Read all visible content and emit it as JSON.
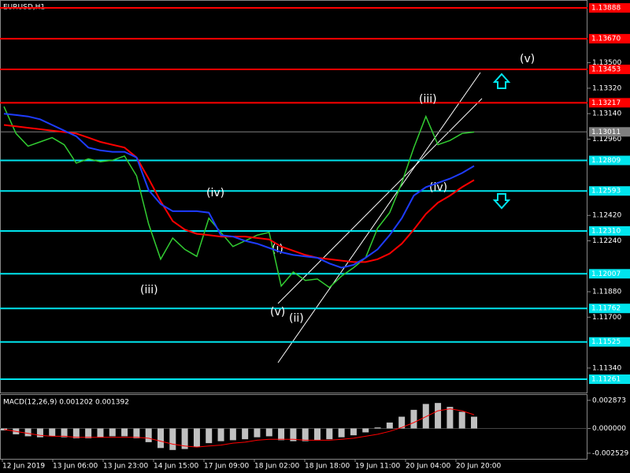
{
  "chart_data": [
    {
      "type": "line",
      "title": "EURUSD,H1",
      "ylim": [
        1.11172,
        1.13944
      ],
      "yticks": [
        {
          "value": 1.135,
          "label": "1.13500"
        },
        {
          "value": 1.1332,
          "label": "1.13320"
        },
        {
          "value": 1.1314,
          "label": "1.13140"
        },
        {
          "value": 1.1296,
          "label": "1.12960"
        },
        {
          "value": 1.1242,
          "label": "1.12420"
        },
        {
          "value": 1.1224,
          "label": "1.12240"
        },
        {
          "value": 1.1188,
          "label": "1.11880"
        },
        {
          "value": 1.117,
          "label": "1.11700"
        },
        {
          "value": 1.1134,
          "label": "1.11340"
        }
      ],
      "levels": [
        {
          "value": 1.13888,
          "label": "1.13888",
          "color": "#ff0000"
        },
        {
          "value": 1.1367,
          "label": "1.13670",
          "color": "#ff0000"
        },
        {
          "value": 1.13453,
          "label": "1.13453",
          "color": "#ff0000"
        },
        {
          "value": 1.13217,
          "label": "1.13217",
          "color": "#ff0000"
        },
        {
          "value": 1.13011,
          "label": "1.13011",
          "color": "#808080"
        },
        {
          "value": 1.12809,
          "label": "1.12809",
          "color": "#00e5ee"
        },
        {
          "value": 1.12593,
          "label": "1.12593",
          "color": "#00e5ee"
        },
        {
          "value": 1.1231,
          "label": "1.12310",
          "color": "#00e5ee"
        },
        {
          "value": 1.12007,
          "label": "1.12007",
          "color": "#00e5ee"
        },
        {
          "value": 1.11762,
          "label": "1.11762",
          "color": "#00e5ee"
        },
        {
          "value": 1.11525,
          "label": "1.11525",
          "color": "#00e5ee"
        },
        {
          "value": 1.11261,
          "label": "1.11261",
          "color": "#00e5ee"
        }
      ],
      "xtick_labels": [
        "12 Jun 2019",
        "13 Jun 06:00",
        "13 Jun 23:00",
        "14 Jun 15:00",
        "17 Jun 09:00",
        "18 Jun 02:00",
        "18 Jun 18:00",
        "19 Jun 11:00",
        "20 Jun 04:00",
        "20 Jun 20:00"
      ],
      "annotations": [
        "(v)",
        "(iii)",
        "(iv)",
        "(iv)",
        "(iii)",
        "(i)",
        "(v)",
        "(ii)"
      ],
      "series": [
        {
          "color": "#32cd32",
          "values": [
            1.1319,
            1.13,
            1.1291,
            1.1294,
            1.1297,
            1.1292,
            1.1279,
            1.1282,
            1.128,
            1.1281,
            1.1284,
            1.127,
            1.1236,
            1.1211,
            1.1226,
            1.1218,
            1.1213,
            1.124,
            1.123,
            1.122,
            1.1224,
            1.1228,
            1.123,
            1.1192,
            1.1202,
            1.1196,
            1.1197,
            1.1191,
            1.1199,
            1.1205,
            1.1212,
            1.1233,
            1.1244,
            1.1265,
            1.129,
            1.1312,
            1.1292,
            1.1295,
            1.13,
            1.1301
          ]
        },
        {
          "color": "#ff0000",
          "values": [
            1.1306,
            1.1305,
            1.1304,
            1.1303,
            1.1302,
            1.1301,
            1.13,
            1.1297,
            1.1294,
            1.1292,
            1.129,
            1.1283,
            1.1268,
            1.1252,
            1.1238,
            1.1232,
            1.1229,
            1.1228,
            1.1227,
            1.1227,
            1.1227,
            1.1226,
            1.1225,
            1.122,
            1.1217,
            1.1214,
            1.1212,
            1.1211,
            1.121,
            1.1209,
            1.1209,
            1.1211,
            1.1215,
            1.1222,
            1.1232,
            1.1243,
            1.1251,
            1.1256,
            1.1262,
            1.1267
          ]
        },
        {
          "color": "#1e3cff",
          "values": [
            1.1314,
            1.1313,
            1.1312,
            1.131,
            1.1306,
            1.1302,
            1.1298,
            1.129,
            1.1288,
            1.1287,
            1.1287,
            1.1283,
            1.126,
            1.125,
            1.1245,
            1.1245,
            1.1245,
            1.1244,
            1.1228,
            1.1227,
            1.1224,
            1.1222,
            1.1219,
            1.1216,
            1.1214,
            1.1213,
            1.1212,
            1.1208,
            1.1205,
            1.1207,
            1.1212,
            1.1218,
            1.1228,
            1.124,
            1.1256,
            1.1262,
            1.1265,
            1.1268,
            1.1272,
            1.1277
          ]
        }
      ]
    },
    {
      "type": "bar",
      "title": "MACD(12,26,9) 0.001202 0.001392",
      "ylim": [
        -0.0031,
        0.0035
      ],
      "yticks": [
        0.002873,
        {
          "value": 0,
          "label": "0.000000"
        },
        -0.002529
      ],
      "color": "#c0c0c0",
      "values": [
        -0.0002,
        -0.0006,
        -0.0008,
        -0.0009,
        -0.0008,
        -0.0009,
        -0.001,
        -0.001,
        -0.0009,
        -0.0008,
        -0.0008,
        -0.001,
        -0.0014,
        -0.002,
        -0.0022,
        -0.0021,
        -0.0019,
        -0.0015,
        -0.0013,
        -0.0012,
        -0.0011,
        -0.0009,
        -0.0008,
        -0.0012,
        -0.0013,
        -0.0013,
        -0.0012,
        -0.0011,
        -0.0009,
        -0.0007,
        -0.0004,
        0.0001,
        0.0006,
        0.0012,
        0.0019,
        0.0025,
        0.0026,
        0.0022,
        0.0017,
        0.0012
      ],
      "series": [
        {
          "color": "#ff0000",
          "values": [
            -0.0001,
            -0.0003,
            -0.0005,
            -0.0007,
            -0.0008,
            -0.0008,
            -0.0009,
            -0.0009,
            -0.0009,
            -0.0009,
            -0.0009,
            -0.0009,
            -0.001,
            -0.0013,
            -0.0016,
            -0.0018,
            -0.0019,
            -0.0018,
            -0.0017,
            -0.0015,
            -0.0014,
            -0.0012,
            -0.0011,
            -0.0011,
            -0.0011,
            -0.0012,
            -0.0012,
            -0.0012,
            -0.0011,
            -0.001,
            -0.0008,
            -0.0006,
            -0.0003,
            0.0001,
            0.0006,
            0.0012,
            0.0018,
            0.002,
            0.0018,
            0.0014
          ]
        }
      ]
    }
  ]
}
